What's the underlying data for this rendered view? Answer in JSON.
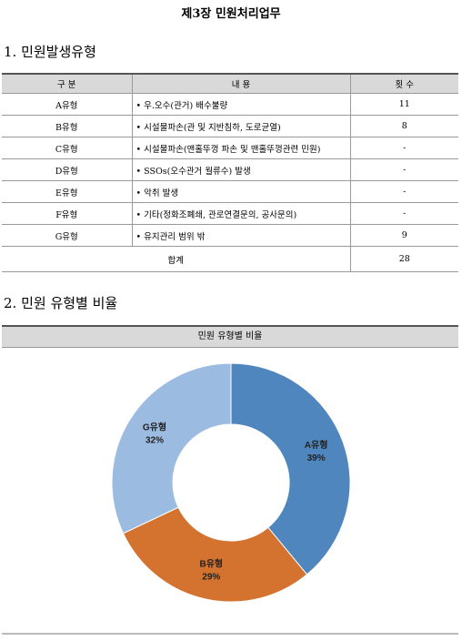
{
  "header": {
    "title": "제3장 민원처리업무"
  },
  "section1": {
    "heading": "1. 민원발생유형"
  },
  "table": {
    "columns": [
      "구 분",
      "내 용",
      "횟 수"
    ],
    "rows": [
      [
        "A유형",
        "• 우.오수(관거) 배수불량",
        "11"
      ],
      [
        "B유형",
        "• 시설물파손(관 및 지반침하, 도로균열)",
        "8"
      ],
      [
        "C유형",
        "• 시설물파손(맨홀뚜껑 파손 및 맨홀뚜껑관련 민원)",
        "-"
      ],
      [
        "D유형",
        "• SSOs(오수관거 월류수) 발생",
        "-"
      ],
      [
        "E유형",
        "• 악취 발생",
        "-"
      ],
      [
        "F유형",
        "• 기타(정화조폐쇄, 관로연결문의, 공사문의)",
        "-"
      ],
      [
        "G유형",
        "• 유지관리 범위 밖",
        "9"
      ]
    ],
    "total": [
      "합계",
      "28"
    ]
  },
  "section2": {
    "heading": "2. 민원 유형별 비율"
  },
  "chart_data": {
    "type": "donut",
    "title": "민원 유형별 비율",
    "categories": [
      "A유형",
      "B유형",
      "G유형"
    ],
    "values": [
      39,
      29,
      32
    ],
    "value_labels": [
      "39%",
      "29%",
      "32%"
    ],
    "colors": [
      "#4f86bd",
      "#d4732f",
      "#9bbbe0"
    ]
  }
}
